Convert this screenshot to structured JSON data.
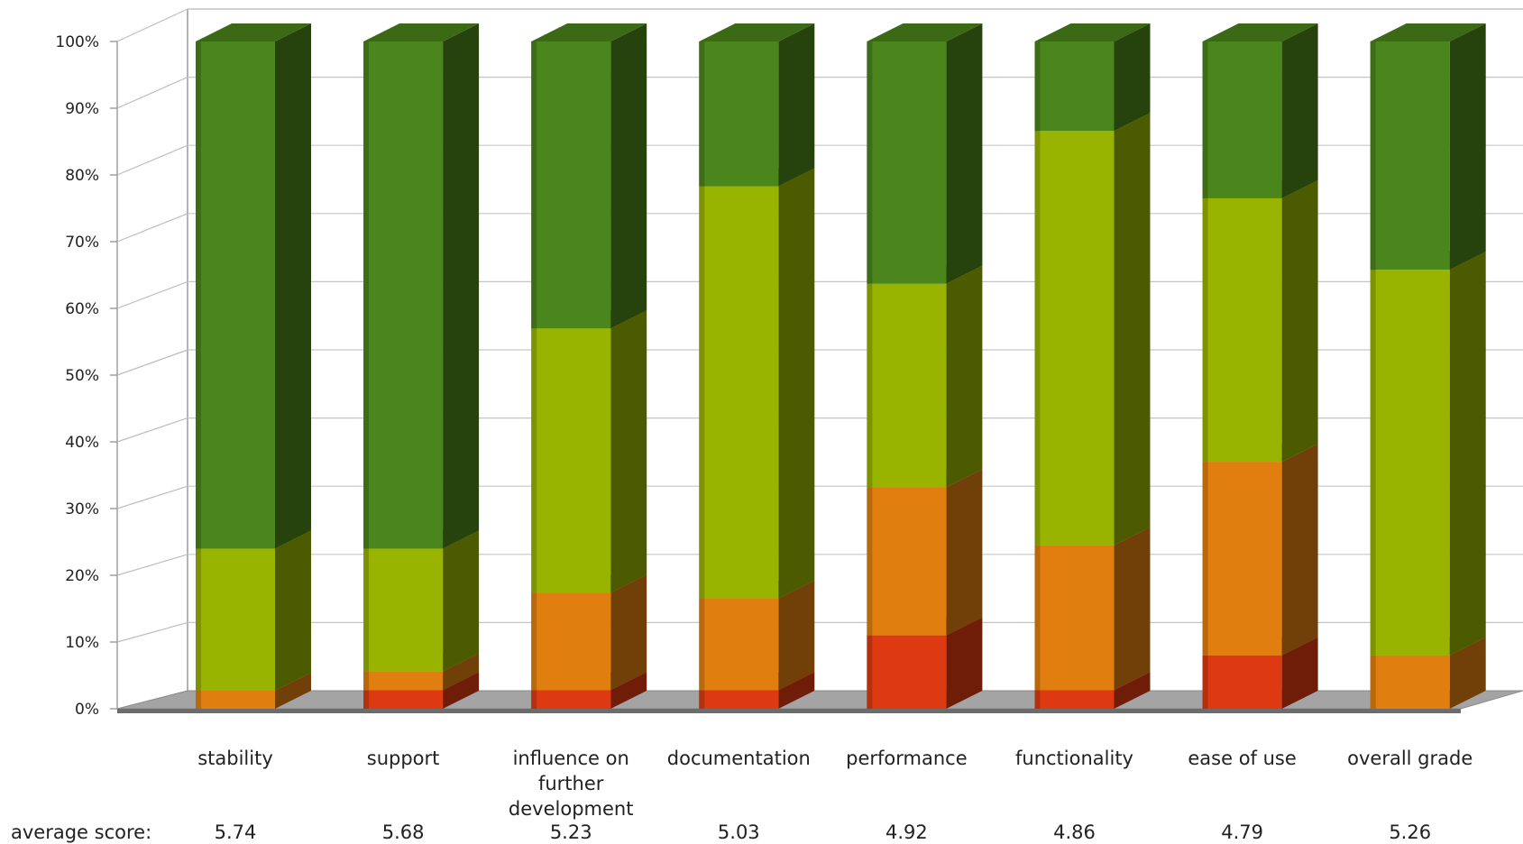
{
  "chart_data": {
    "type": "bar",
    "stacked": true,
    "percent": true,
    "categories": [
      [
        "stability"
      ],
      [
        "support"
      ],
      [
        "influence on",
        "further",
        "development"
      ],
      [
        "documentation"
      ],
      [
        "performance"
      ],
      [
        "functionality"
      ],
      [
        "ease of use"
      ],
      [
        "overall grade"
      ]
    ],
    "series": [
      {
        "color": "#dd3a12",
        "values": [
          0,
          2.8,
          2.8,
          2.8,
          11,
          2.8,
          8,
          0
        ]
      },
      {
        "color": "#e07f10",
        "values": [
          2.7,
          2.8,
          14.6,
          13.7,
          22.2,
          21.7,
          29,
          8
        ]
      },
      {
        "color": "#98b400",
        "values": [
          21.3,
          18.4,
          39.6,
          61.8,
          30.5,
          62.1,
          39.5,
          57.8
        ]
      },
      {
        "color": "#4b861c",
        "values": [
          76,
          76,
          43,
          21.7,
          36.3,
          13.4,
          23.5,
          34.2
        ]
      }
    ],
    "yticks": [
      "0%",
      "10%",
      "20%",
      "30%",
      "40%",
      "50%",
      "60%",
      "70%",
      "80%",
      "90%",
      "100%"
    ],
    "ylim": [
      0,
      100
    ],
    "grid": true,
    "three_d": true,
    "score_label": "average score:",
    "scores": [
      "5.74",
      "5.68",
      "5.23",
      "5.03",
      "4.92",
      "4.86",
      "4.79",
      "5.26"
    ]
  }
}
